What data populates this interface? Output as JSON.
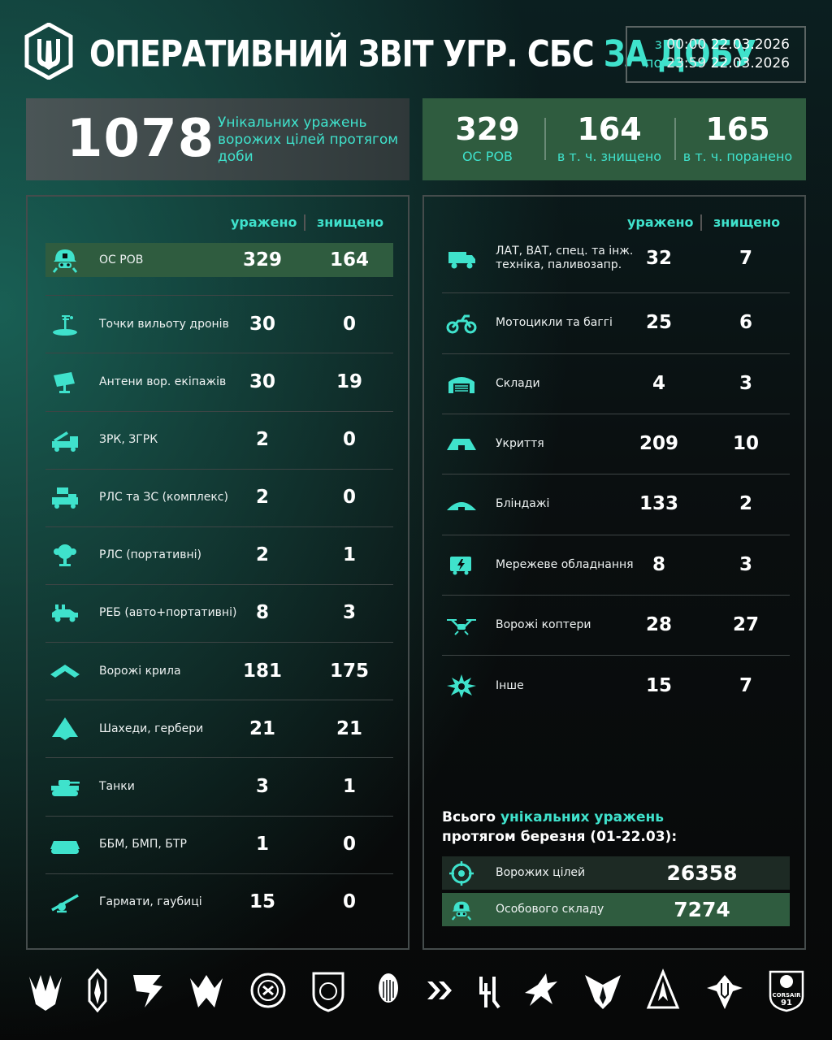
{
  "header": {
    "title_main": "ОПЕРАТИВНИЙ ЗВІТ УГР. СБС",
    "title_accent": "ЗА ДОБУ",
    "period_from_label": "з",
    "period_from_time": "00:00",
    "period_from_date": "22.03.2026",
    "period_to_label": "по",
    "period_to_time": "23:59",
    "period_to_date": "22.03.2026"
  },
  "summary": {
    "total": "1078",
    "total_desc": "Унікальних уражень ворожих цілей протягом доби",
    "cells": [
      {
        "value": "329",
        "label": "ОС РОВ"
      },
      {
        "value": "164",
        "label": "в т. ч. знищено"
      },
      {
        "value": "165",
        "label": "в т. ч. поранено"
      }
    ]
  },
  "columns": {
    "hit": "уражено",
    "destroyed": "знищено"
  },
  "left_rows": [
    {
      "icon": "soldier-helmet-icon",
      "label": "ОС РОВ",
      "hit": "329",
      "destroyed": "164"
    },
    {
      "icon": "drone-launch-point-icon",
      "label": "Точки вильоту дронів",
      "hit": "30",
      "destroyed": "0"
    },
    {
      "icon": "antenna-icon",
      "label": "Антени вор. екіпажів",
      "hit": "30",
      "destroyed": "19"
    },
    {
      "icon": "sam-launcher-icon",
      "label": "ЗРК, ЗГРК",
      "hit": "2",
      "destroyed": "0"
    },
    {
      "icon": "radar-truck-icon",
      "label": "РЛС та ЗС (комплекс)",
      "hit": "2",
      "destroyed": "0"
    },
    {
      "icon": "portable-radar-icon",
      "label": "РЛС (портативні)",
      "hit": "2",
      "destroyed": "1"
    },
    {
      "icon": "ew-vehicle-icon",
      "label": "РЕБ (авто+портативні)",
      "hit": "8",
      "destroyed": "3"
    },
    {
      "icon": "fixed-wing-drone-icon",
      "label": "Ворожі крила",
      "hit": "181",
      "destroyed": "175"
    },
    {
      "icon": "shahed-drone-icon",
      "label": "Шахеди, гербери",
      "hit": "21",
      "destroyed": "21"
    },
    {
      "icon": "tank-icon",
      "label": "Танки",
      "hit": "3",
      "destroyed": "1"
    },
    {
      "icon": "apc-icon",
      "label": "ББМ, БМП, БТР",
      "hit": "1",
      "destroyed": "0"
    },
    {
      "icon": "howitzer-icon",
      "label": "Гармати, гаубиці",
      "hit": "15",
      "destroyed": "0"
    }
  ],
  "right_rows": [
    {
      "icon": "truck-icon",
      "label": "ЛАТ, ВАТ, спец. та інж.",
      "label2": "техніка, паливозапр.",
      "hit": "32",
      "destroyed": "7"
    },
    {
      "icon": "motorcycle-icon",
      "label": "Мотоцикли та баггі",
      "label2": "",
      "hit": "25",
      "destroyed": "6"
    },
    {
      "icon": "warehouse-icon",
      "label": "Склади",
      "label2": "",
      "hit": "4",
      "destroyed": "3"
    },
    {
      "icon": "shelter-icon",
      "label": "Укриття",
      "label2": "",
      "hit": "209",
      "destroyed": "10"
    },
    {
      "icon": "dugout-icon",
      "label": "Бліндажі",
      "label2": "",
      "hit": "133",
      "destroyed": "2"
    },
    {
      "icon": "network-equipment-icon",
      "label": "Мережеве обладнання",
      "label2": "",
      "hit": "8",
      "destroyed": "3"
    },
    {
      "icon": "quadcopter-icon",
      "label": "Ворожі коптери",
      "label2": "",
      "hit": "28",
      "destroyed": "27"
    },
    {
      "icon": "explosion-icon",
      "label": "Інше",
      "label2": "",
      "hit": "15",
      "destroyed": "7"
    }
  ],
  "totals": {
    "title_prefix": "Всього",
    "title_accent": "унікальних уражень",
    "title_line2": "протягом березня (01-22.03):",
    "rows": [
      {
        "icon": "target-crosshair-icon",
        "label": "Ворожих цілей",
        "value": "26358"
      },
      {
        "icon": "soldier-helmet-icon",
        "label": "Особового складу",
        "value": "7274"
      }
    ]
  },
  "footer": {
    "badge_text": "CORSAIR",
    "badge_number": "91"
  },
  "colors": {
    "accent": "#3fe2cc",
    "highlight": "#2f5c3f",
    "panel_border": "#454c4c"
  }
}
